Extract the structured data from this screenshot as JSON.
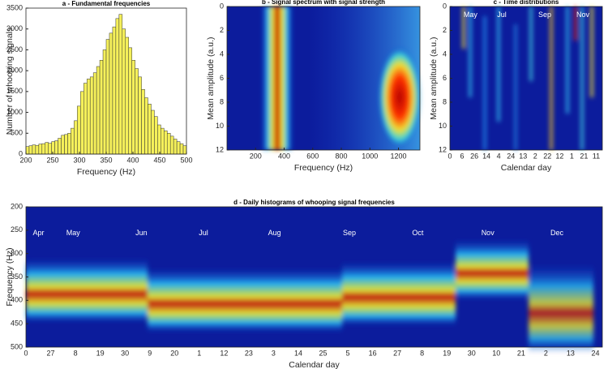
{
  "chart_data": [
    {
      "type": "histogram",
      "title": "a - Fundamental frequencies",
      "xlabel": "Frequency (Hz)",
      "ylabel": "Number of whooping signals",
      "color": "#f5f05a",
      "bins": [
        200,
        206,
        212,
        218,
        224,
        230,
        236,
        242,
        248,
        254,
        260,
        266,
        272,
        278,
        284,
        290,
        296,
        302,
        308,
        314,
        320,
        326,
        332,
        338,
        344,
        350,
        356,
        362,
        368,
        374,
        380,
        386,
        392,
        398,
        404,
        410,
        416,
        422,
        428,
        434,
        440,
        446,
        452,
        458,
        464,
        470,
        476,
        482,
        488,
        494,
        500
      ],
      "values": [
        180,
        200,
        220,
        210,
        240,
        250,
        280,
        260,
        300,
        320,
        380,
        450,
        470,
        500,
        620,
        800,
        1150,
        1500,
        1700,
        1800,
        1850,
        1950,
        2100,
        2250,
        2500,
        2750,
        2900,
        3050,
        3250,
        3350,
        3000,
        2800,
        2550,
        2250,
        2050,
        1850,
        1550,
        1350,
        1200,
        1050,
        900,
        700,
        620,
        560,
        500,
        430,
        360,
        300,
        250,
        200
      ],
      "xlim": [
        200,
        500
      ],
      "xticks": [
        200,
        250,
        300,
        350,
        400,
        450,
        500
      ],
      "ylim": [
        0,
        3500
      ],
      "yticks": [
        0,
        500,
        1000,
        1500,
        2000,
        2500,
        3000,
        3500
      ]
    },
    {
      "type": "heatmap",
      "title": "b - Signal spectrum with signal strength",
      "xlabel": "Frequency (Hz)",
      "ylabel": "Mean amplitude (a.u.)",
      "xlim": [
        0,
        1350
      ],
      "xticks": [
        200,
        400,
        600,
        800,
        1000,
        1200
      ],
      "ylim": [
        0,
        12
      ],
      "yticks": [
        0,
        2,
        4,
        6,
        8,
        10,
        12
      ],
      "y_reversed": true
    },
    {
      "type": "heatmap",
      "title": "c - Time distributions",
      "xlabel": "Calendar day",
      "ylabel": "Mean amplitude (a.u.)",
      "categories": [
        "0",
        "6",
        "26",
        "14",
        "4",
        "24",
        "13",
        "2",
        "22",
        "12",
        "1",
        "21",
        "11"
      ],
      "annotations": [
        "May",
        "Jul",
        "Sep",
        "Nov"
      ],
      "ylim": [
        0,
        12
      ],
      "yticks": [
        0,
        2,
        4,
        6,
        8,
        10,
        12
      ],
      "y_reversed": true
    },
    {
      "type": "heatmap",
      "title": "d - Daily histograms of whooping signal frequencies",
      "xlabel": "Calendar day",
      "ylabel": "Frequency (Hz)",
      "categories": [
        "0",
        "27",
        "8",
        "19",
        "30",
        "9",
        "20",
        "1",
        "12",
        "23",
        "3",
        "14",
        "25",
        "5",
        "16",
        "27",
        "8",
        "19",
        "30",
        "10",
        "21",
        "2",
        "13",
        "24"
      ],
      "annotations": [
        "Apr",
        "May",
        "Jun",
        "Jul",
        "Aug",
        "Sep",
        "Oct",
        "Nov",
        "Dec"
      ],
      "ylim": [
        200,
        500
      ],
      "yticks": [
        200,
        250,
        300,
        350,
        400,
        450,
        500
      ],
      "y_reversed": true
    }
  ]
}
